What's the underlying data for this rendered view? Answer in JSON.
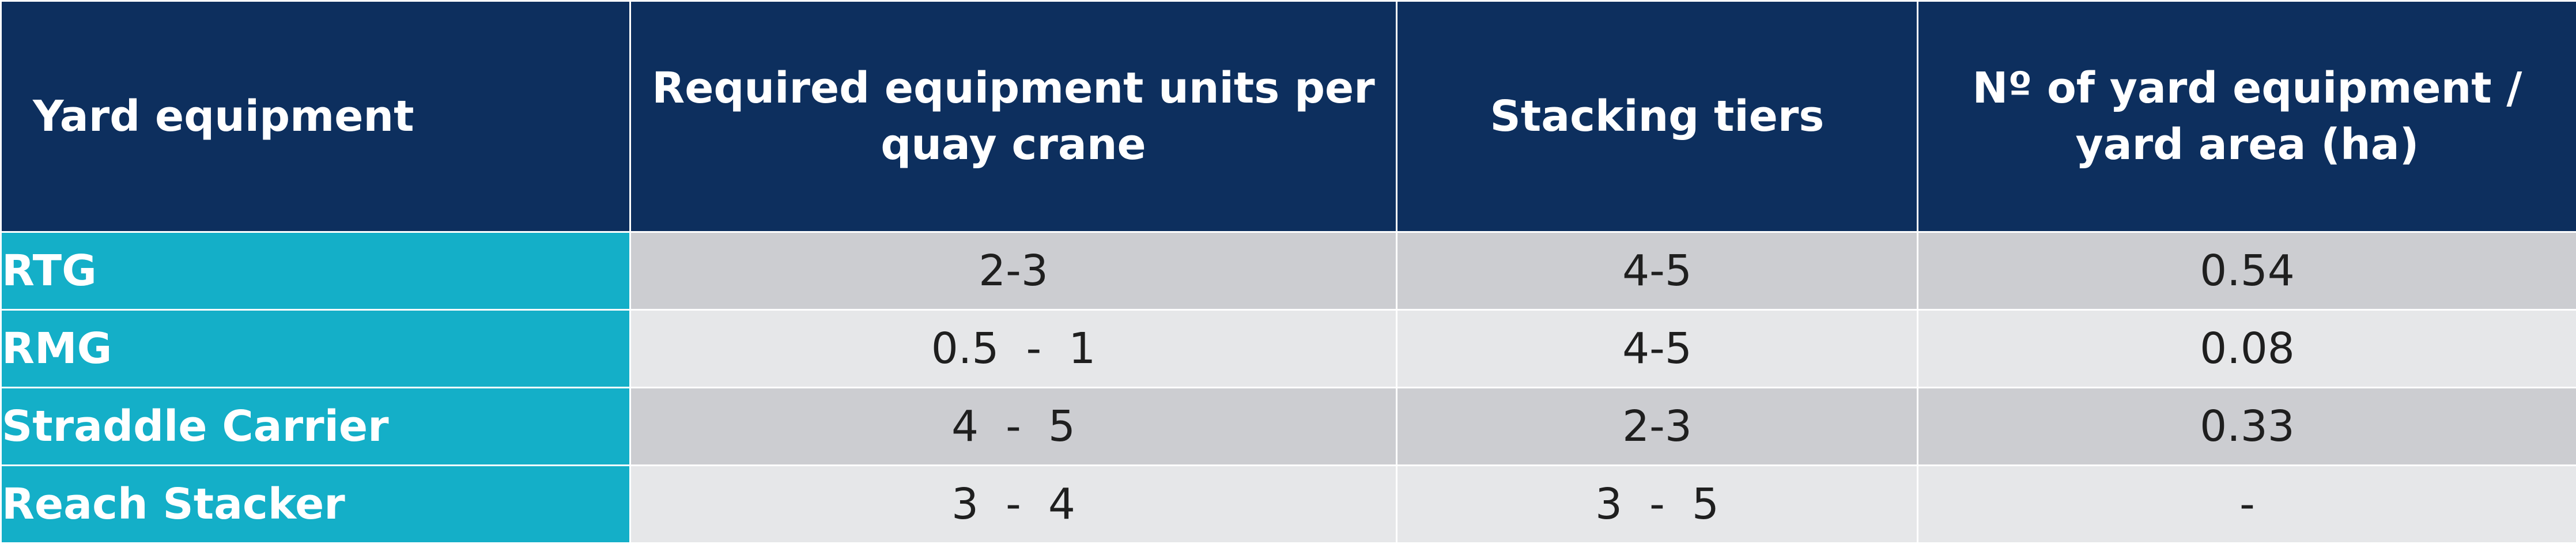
{
  "table": {
    "headers": [
      "Yard equipment",
      "Required equipment units per quay crane",
      "Stacking tiers",
      "Nº of yard equipment / yard area (ha)"
    ],
    "rows": [
      {
        "equipment": "RTG",
        "units_per_quay_crane": "2-3",
        "stacking_tiers": "4-5",
        "equipment_per_area": "0.54"
      },
      {
        "equipment": "RMG",
        "units_per_quay_crane": "0.5  -  1",
        "stacking_tiers": "4-5",
        "equipment_per_area": "0.08"
      },
      {
        "equipment": "Straddle Carrier",
        "units_per_quay_crane": "4  -  5",
        "stacking_tiers": "2-3",
        "equipment_per_area": "0.33"
      },
      {
        "equipment": "Reach Stacker",
        "units_per_quay_crane": "3  -  4",
        "stacking_tiers": "3  -  5",
        "equipment_per_area": "-"
      }
    ]
  },
  "colors": {
    "header_bg": "#0d2f5e",
    "row_header_bg": "#14afc8",
    "row_odd_bg": "#cccdd1",
    "row_even_bg": "#e6e7e9",
    "border": "#ffffff"
  }
}
